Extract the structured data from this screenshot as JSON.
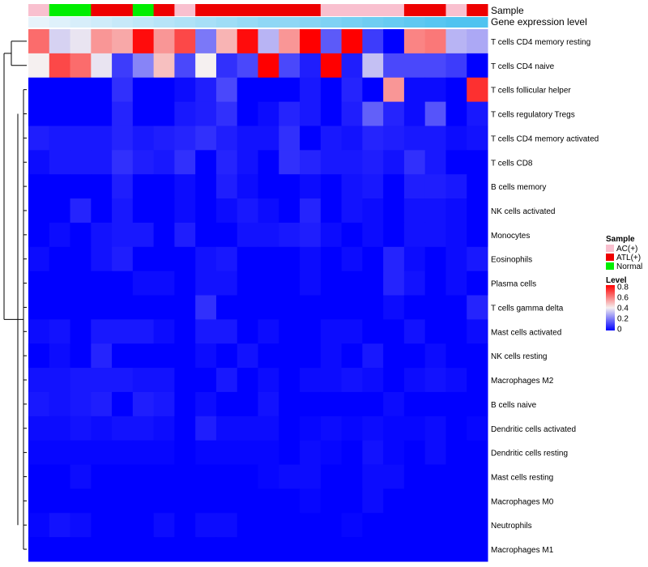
{
  "chart_data": {
    "type": "heatmap",
    "annotation_labels": {
      "sample": "Sample",
      "gene_expression": "Gene expression level"
    },
    "rows": [
      "T cells CD4 memory resting",
      "T cells CD4 naive",
      "T cells follicular helper",
      "T cells regulatory  Tregs",
      "T cells CD4 memory activated",
      "T cells CD8",
      "B cells memory",
      "NK cells activated",
      "Monocytes",
      "Eosinophils",
      "Plasma cells",
      "T cells gamma delta",
      "Mast cells activated",
      "NK cells resting",
      "Macrophages M2",
      "B cells naive",
      "Dendritic cells activated",
      "Dendritic cells resting",
      "Mast cells resting",
      "Macrophages M0",
      "Neutrophils",
      "Macrophages M1"
    ],
    "sample_groups": [
      "AC(+)",
      "Normal",
      "Normal",
      "ATL(+)",
      "ATL(+)",
      "Normal",
      "ATL(+)",
      "AC(+)",
      "ATL(+)",
      "ATL(+)",
      "ATL(+)",
      "ATL(+)",
      "ATL(+)",
      "ATL(+)",
      "AC(+)",
      "AC(+)",
      "AC(+)",
      "AC(+)",
      "ATL(+)",
      "ATL(+)",
      "AC(+)",
      "ATL(+)"
    ],
    "gene_expression_level": [
      0.05,
      0.1,
      0.15,
      0.2,
      0.25,
      0.3,
      0.35,
      0.4,
      0.45,
      0.5,
      0.55,
      0.6,
      0.6,
      0.65,
      0.7,
      0.75,
      0.8,
      0.85,
      0.9,
      0.95,
      1.0,
      1.0
    ],
    "values": [
      [
        0.62,
        0.35,
        0.38,
        0.55,
        0.52,
        0.78,
        0.55,
        0.68,
        0.2,
        0.5,
        0.78,
        0.3,
        0.55,
        0.8,
        0.15,
        0.8,
        0.1,
        0.0,
        0.58,
        0.6,
        0.3,
        0.28
      ],
      [
        0.4,
        0.68,
        0.62,
        0.38,
        0.1,
        0.22,
        0.48,
        0.12,
        0.4,
        0.08,
        0.12,
        0.8,
        0.12,
        0.05,
        0.8,
        0.05,
        0.32,
        0.12,
        0.12,
        0.12,
        0.1,
        0.0
      ],
      [
        0.0,
        0.0,
        0.0,
        0.0,
        0.08,
        0.0,
        0.0,
        0.02,
        0.05,
        0.12,
        0.0,
        0.0,
        0.0,
        0.04,
        0.0,
        0.06,
        0.0,
        0.55,
        0.02,
        0.02,
        0.0,
        0.72
      ],
      [
        0.0,
        0.0,
        0.0,
        0.0,
        0.06,
        0.0,
        0.0,
        0.04,
        0.05,
        0.08,
        0.0,
        0.02,
        0.06,
        0.04,
        0.0,
        0.05,
        0.16,
        0.06,
        0.02,
        0.14,
        0.0,
        0.04
      ],
      [
        0.05,
        0.04,
        0.04,
        0.04,
        0.06,
        0.04,
        0.05,
        0.06,
        0.08,
        0.05,
        0.03,
        0.03,
        0.08,
        0.0,
        0.04,
        0.03,
        0.06,
        0.05,
        0.04,
        0.04,
        0.02,
        0.03
      ],
      [
        0.02,
        0.04,
        0.04,
        0.04,
        0.08,
        0.05,
        0.04,
        0.08,
        0.0,
        0.06,
        0.03,
        0.0,
        0.08,
        0.06,
        0.04,
        0.04,
        0.05,
        0.03,
        0.08,
        0.04,
        0.0,
        0.0
      ],
      [
        0.0,
        0.0,
        0.0,
        0.0,
        0.05,
        0.0,
        0.0,
        0.02,
        0.0,
        0.05,
        0.02,
        0.0,
        0.0,
        0.02,
        0.0,
        0.03,
        0.04,
        0.0,
        0.05,
        0.05,
        0.04,
        0.0
      ],
      [
        0.0,
        0.0,
        0.06,
        0.0,
        0.04,
        0.0,
        0.0,
        0.02,
        0.0,
        0.02,
        0.04,
        0.02,
        0.0,
        0.06,
        0.0,
        0.03,
        0.02,
        0.0,
        0.03,
        0.03,
        0.02,
        0.0
      ],
      [
        0.0,
        0.02,
        0.0,
        0.03,
        0.04,
        0.04,
        0.0,
        0.05,
        0.0,
        0.0,
        0.03,
        0.03,
        0.04,
        0.05,
        0.02,
        0.0,
        0.02,
        0.0,
        0.03,
        0.03,
        0.02,
        0.0
      ],
      [
        0.02,
        0.0,
        0.0,
        0.03,
        0.05,
        0.0,
        0.0,
        0.0,
        0.03,
        0.04,
        0.0,
        0.0,
        0.0,
        0.02,
        0.0,
        0.02,
        0.0,
        0.06,
        0.02,
        0.0,
        0.02,
        0.04
      ],
      [
        0.0,
        0.0,
        0.0,
        0.0,
        0.0,
        0.02,
        0.02,
        0.0,
        0.03,
        0.03,
        0.0,
        0.0,
        0.0,
        0.02,
        0.0,
        0.0,
        0.0,
        0.06,
        0.03,
        0.0,
        0.02,
        0.0
      ],
      [
        0.0,
        0.0,
        0.0,
        0.0,
        0.0,
        0.0,
        0.0,
        0.0,
        0.08,
        0.0,
        0.0,
        0.0,
        0.0,
        0.0,
        0.0,
        0.0,
        0.0,
        0.02,
        0.0,
        0.0,
        0.0,
        0.06
      ],
      [
        0.02,
        0.03,
        0.0,
        0.04,
        0.04,
        0.04,
        0.02,
        0.0,
        0.04,
        0.04,
        0.0,
        0.02,
        0.0,
        0.0,
        0.02,
        0.02,
        0.0,
        0.0,
        0.03,
        0.0,
        0.0,
        0.02
      ],
      [
        0.0,
        0.02,
        0.0,
        0.06,
        0.0,
        0.0,
        0.0,
        0.0,
        0.02,
        0.0,
        0.03,
        0.0,
        0.0,
        0.0,
        0.02,
        0.0,
        0.04,
        0.0,
        0.0,
        0.02,
        0.0,
        0.0
      ],
      [
        0.03,
        0.03,
        0.04,
        0.04,
        0.04,
        0.03,
        0.03,
        0.0,
        0.0,
        0.04,
        0.0,
        0.02,
        0.0,
        0.02,
        0.02,
        0.03,
        0.02,
        0.0,
        0.02,
        0.03,
        0.02,
        0.0
      ],
      [
        0.04,
        0.03,
        0.04,
        0.05,
        0.0,
        0.05,
        0.04,
        0.0,
        0.02,
        0.0,
        0.0,
        0.03,
        0.0,
        0.0,
        0.0,
        0.0,
        0.0,
        0.02,
        0.0,
        0.0,
        0.0,
        0.0
      ],
      [
        0.02,
        0.02,
        0.03,
        0.02,
        0.03,
        0.03,
        0.02,
        0.0,
        0.05,
        0.02,
        0.02,
        0.02,
        0.0,
        0.01,
        0.02,
        0.01,
        0.02,
        0.01,
        0.01,
        0.02,
        0.0,
        0.01
      ],
      [
        0.01,
        0.01,
        0.01,
        0.01,
        0.01,
        0.01,
        0.01,
        0.0,
        0.01,
        0.01,
        0.01,
        0.01,
        0.0,
        0.02,
        0.01,
        0.0,
        0.03,
        0.01,
        0.0,
        0.02,
        0.0,
        0.0
      ],
      [
        0.0,
        0.0,
        0.02,
        0.0,
        0.0,
        0.0,
        0.0,
        0.0,
        0.0,
        0.0,
        0.0,
        0.01,
        0.02,
        0.02,
        0.0,
        0.0,
        0.02,
        0.02,
        0.0,
        0.0,
        0.0,
        0.0
      ],
      [
        0.0,
        0.0,
        0.0,
        0.0,
        0.0,
        0.0,
        0.0,
        0.0,
        0.0,
        0.0,
        0.0,
        0.0,
        0.0,
        0.01,
        0.0,
        0.0,
        0.02,
        0.0,
        0.0,
        0.0,
        0.0,
        0.0
      ],
      [
        0.01,
        0.03,
        0.02,
        0.0,
        0.0,
        0.0,
        0.02,
        0.0,
        0.02,
        0.02,
        0.0,
        0.0,
        0.0,
        0.0,
        0.0,
        0.01,
        0.0,
        0.0,
        0.0,
        0.0,
        0.0,
        0.0
      ],
      [
        0.0,
        0.0,
        0.0,
        0.0,
        0.0,
        0.0,
        0.0,
        0.0,
        0.0,
        0.0,
        0.0,
        0.0,
        0.0,
        0.0,
        0.0,
        0.0,
        0.0,
        0.0,
        0.0,
        0.0,
        0.0,
        0.0
      ]
    ],
    "legend_sample": {
      "title": "Sample",
      "entries": [
        "AC(+)",
        "ATL(+)",
        "Normal"
      ]
    },
    "legend_level": {
      "title": "Level",
      "ticks": [
        "0.8",
        "0.6",
        "0.4",
        "0.2",
        "0"
      ],
      "range": [
        0,
        0.8
      ]
    },
    "colors": {
      "AC(+)": "#f9c0cf",
      "ATL(+)": "#ee0000",
      "Normal": "#00ee00",
      "gene_low": "#eff6fc",
      "gene_high": "#4fc3f0",
      "scale_low": "#0000ff",
      "scale_mid": "#f5f0f0",
      "scale_high": "#ff0000"
    }
  }
}
